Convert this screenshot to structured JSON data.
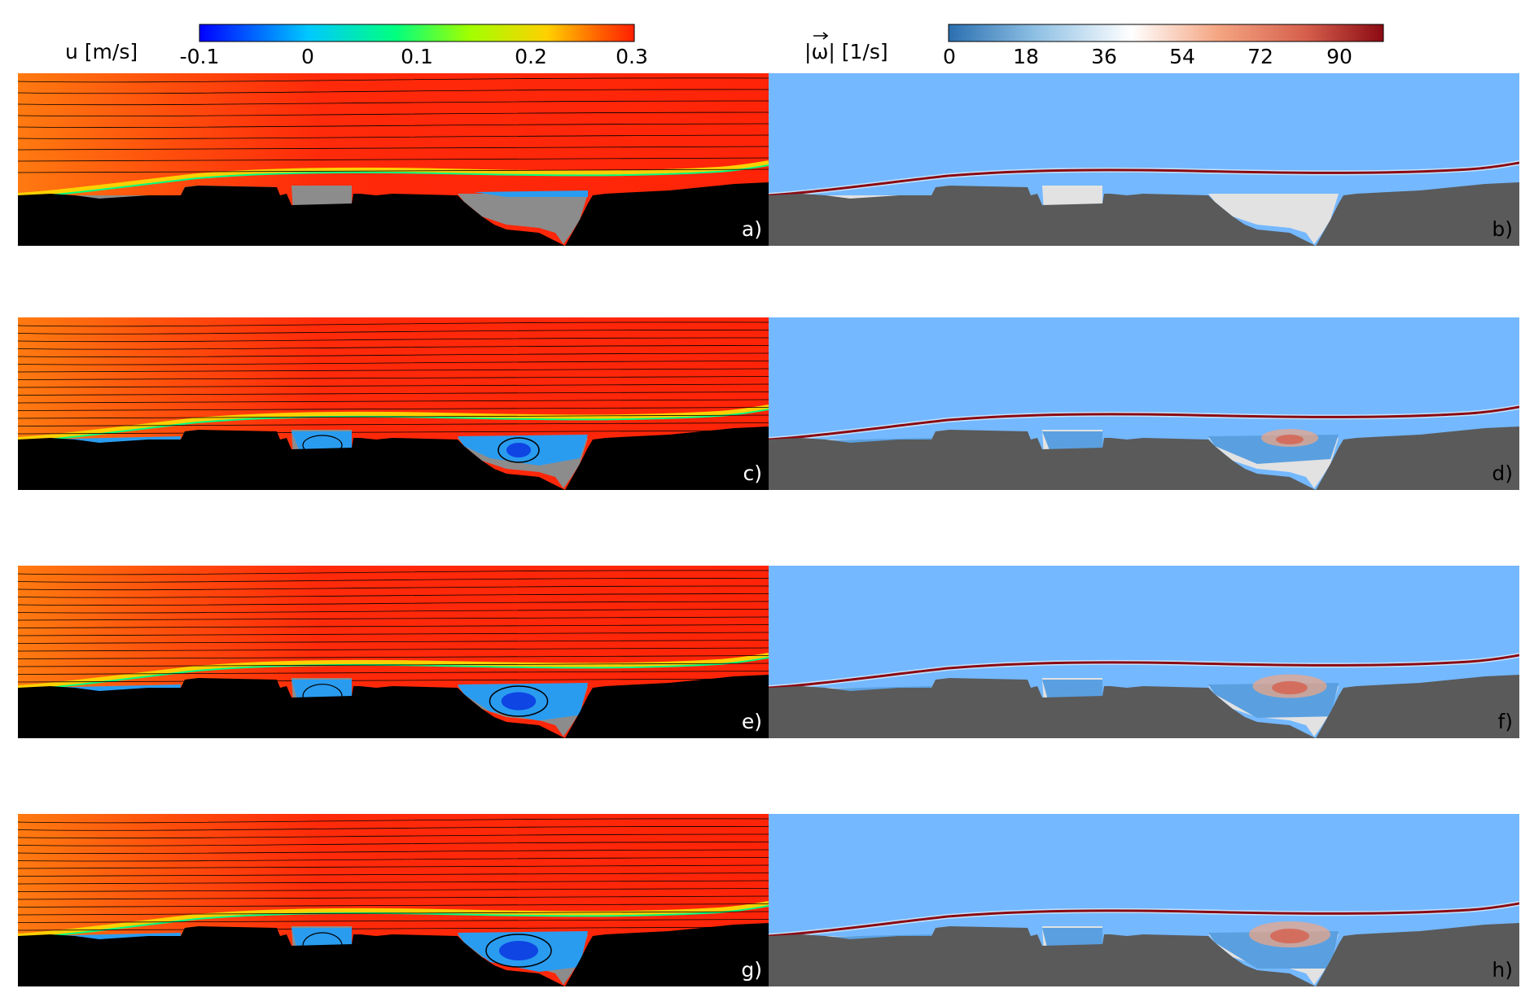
{
  "colorbars": {
    "velocity": {
      "label": "u [m/s]",
      "ticks": [
        "-0.1",
        "0",
        "0.1",
        "0.2",
        "0.3"
      ],
      "stops": [
        "#0000ff",
        "#00c8ff",
        "#00ff80",
        "#a0ff00",
        "#ffd000",
        "#ff6000",
        "#ff2000"
      ]
    },
    "vorticity": {
      "label_prefix": "|",
      "label_symbol": "ω",
      "label_suffix": "| [1/s]",
      "ticks": [
        "0",
        "18",
        "36",
        "54",
        "72",
        "90"
      ],
      "stops": [
        "#2b6fb0",
        "#8ec0e4",
        "#ffffff",
        "#f4a582",
        "#d6604d",
        "#8b0a12"
      ]
    }
  },
  "panels": [
    {
      "label": "a)",
      "field": "velocity",
      "row": 0
    },
    {
      "label": "b)",
      "field": "vorticity",
      "row": 0
    },
    {
      "label": "c)",
      "field": "velocity",
      "row": 1
    },
    {
      "label": "d)",
      "field": "vorticity",
      "row": 1
    },
    {
      "label": "e)",
      "field": "velocity",
      "row": 2
    },
    {
      "label": "f)",
      "field": "vorticity",
      "row": 2
    },
    {
      "label": "g)",
      "field": "velocity",
      "row": 3
    },
    {
      "label": "h)",
      "field": "vorticity",
      "row": 3
    }
  ],
  "colors": {
    "velocity_flow": "#ff2a0a",
    "velocity_inlet": "#ff7a10",
    "velocity_cavity": "#2a9cf0",
    "velocity_deep": "#0830e0",
    "velocity_shear": "#ffd000",
    "velocity_bed": "#000000",
    "velocity_water_gray": "#8c8c8c",
    "vorticity_flow": "#74b8ff",
    "vorticity_bed": "#5a5a5a",
    "vorticity_water_gray": "#e2e2e2",
    "vorticity_cavity": "#5aa0e0",
    "vorticity_shear": "#8b0a12"
  }
}
